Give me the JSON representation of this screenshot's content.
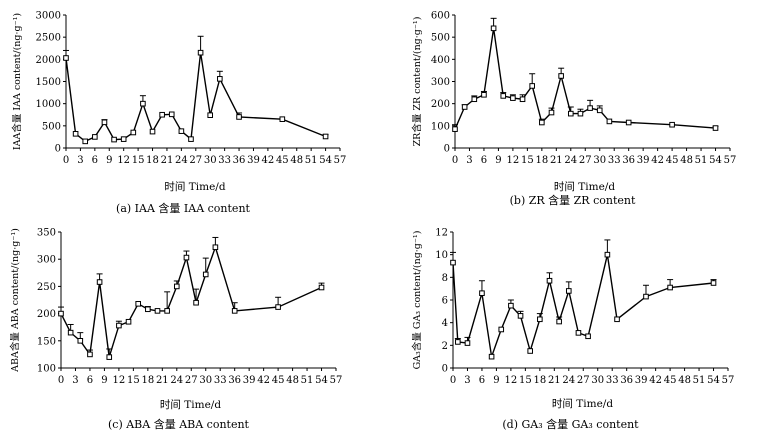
{
  "chart_data": [
    {
      "type": "line",
      "caption": "(a) IAA 含量 IAA content",
      "xlabel": "时间 Time/d",
      "ylabel": "IAA含量 IAA content/(ng·g⁻¹)",
      "xlim": [
        0,
        57
      ],
      "ylim": [
        0,
        3000
      ],
      "xticks": [
        0,
        3,
        6,
        9,
        12,
        15,
        18,
        21,
        24,
        27,
        30,
        33,
        36,
        39,
        42,
        45,
        48,
        51,
        54,
        57
      ],
      "yticks": [
        0,
        500,
        1000,
        1500,
        2000,
        2500,
        3000
      ],
      "x": [
        0,
        2,
        4,
        6,
        8,
        10,
        12,
        14,
        16,
        18,
        20,
        22,
        24,
        26,
        28,
        30,
        32,
        36,
        45,
        54
      ],
      "values": [
        2030,
        320,
        150,
        250,
        580,
        190,
        200,
        350,
        1000,
        370,
        750,
        760,
        380,
        200,
        2150,
        740,
        1560,
        700,
        650,
        260
      ],
      "errors": [
        170,
        0,
        0,
        0,
        60,
        0,
        0,
        0,
        180,
        0,
        0,
        0,
        0,
        0,
        370,
        0,
        170,
        90,
        0,
        40
      ]
    },
    {
      "type": "line",
      "caption": "(b) ZR 含量 ZR content",
      "xlabel": "时间 Time/d",
      "ylabel": "ZR含量 ZR content/(ng·g⁻¹)",
      "xlim": [
        0,
        57
      ],
      "ylim": [
        0,
        600
      ],
      "xticks": [
        0,
        3,
        6,
        9,
        12,
        15,
        18,
        21,
        24,
        27,
        30,
        33,
        36,
        39,
        42,
        45,
        48,
        51,
        54,
        57
      ],
      "yticks": [
        0,
        100,
        200,
        300,
        400,
        500,
        600
      ],
      "x": [
        0,
        2,
        4,
        6,
        8,
        10,
        12,
        14,
        16,
        18,
        20,
        22,
        24,
        26,
        28,
        30,
        32,
        36,
        45,
        54
      ],
      "values": [
        85,
        185,
        220,
        240,
        540,
        235,
        225,
        220,
        280,
        115,
        160,
        325,
        155,
        155,
        180,
        170,
        120,
        115,
        105,
        90
      ],
      "errors": [
        20,
        10,
        15,
        15,
        45,
        15,
        15,
        20,
        55,
        15,
        20,
        35,
        30,
        20,
        35,
        20,
        0,
        0,
        0,
        8
      ]
    },
    {
      "type": "line",
      "caption": "(c) ABA 含量 ABA content",
      "xlabel": "时间 Time/d",
      "ylabel": "ABA含量 ABA content/(ng·g⁻¹)",
      "xlim": [
        0,
        57
      ],
      "ylim": [
        100,
        350
      ],
      "xticks": [
        0,
        3,
        6,
        9,
        12,
        15,
        18,
        21,
        24,
        27,
        30,
        33,
        36,
        39,
        42,
        45,
        48,
        51,
        54,
        57
      ],
      "yticks": [
        100,
        150,
        200,
        250,
        300,
        350
      ],
      "x": [
        0,
        2,
        4,
        6,
        8,
        10,
        12,
        14,
        16,
        18,
        20,
        22,
        24,
        26,
        28,
        30,
        32,
        36,
        45,
        54
      ],
      "values": [
        200,
        165,
        150,
        125,
        258,
        120,
        178,
        185,
        218,
        208,
        205,
        205,
        250,
        303,
        220,
        272,
        322,
        205,
        212,
        248
      ],
      "errors": [
        12,
        15,
        15,
        8,
        15,
        15,
        8,
        0,
        0,
        5,
        0,
        35,
        10,
        12,
        25,
        30,
        18,
        15,
        18,
        8
      ]
    },
    {
      "type": "line",
      "caption": "(d) GA₃ 含量 GA₃ content",
      "xlabel": "时间 Time/d",
      "ylabel": "GA₃含量 GA₃ content/(ng·g⁻¹)",
      "xlim": [
        0,
        57
      ],
      "ylim": [
        0,
        12
      ],
      "xticks": [
        0,
        3,
        6,
        9,
        12,
        15,
        18,
        21,
        24,
        27,
        30,
        33,
        36,
        39,
        42,
        45,
        48,
        51,
        54,
        57
      ],
      "yticks": [
        0,
        2,
        4,
        6,
        8,
        10,
        12
      ],
      "x": [
        0,
        1,
        3,
        6,
        8,
        10,
        12,
        14,
        16,
        18,
        20,
        22,
        24,
        26,
        28,
        32,
        34,
        40,
        45,
        54
      ],
      "values": [
        9.3,
        2.3,
        2.2,
        6.6,
        1.0,
        3.4,
        5.5,
        4.6,
        1.5,
        4.3,
        7.7,
        4.1,
        6.8,
        3.1,
        2.8,
        10.0,
        4.3,
        6.3,
        7.1,
        7.5
      ],
      "errors": [
        0.9,
        0.3,
        0.5,
        1.1,
        0,
        0,
        0.5,
        0.4,
        0,
        0.5,
        0.7,
        0.4,
        0.8,
        0,
        0,
        1.3,
        0,
        1.0,
        0.7,
        0.3
      ]
    }
  ]
}
